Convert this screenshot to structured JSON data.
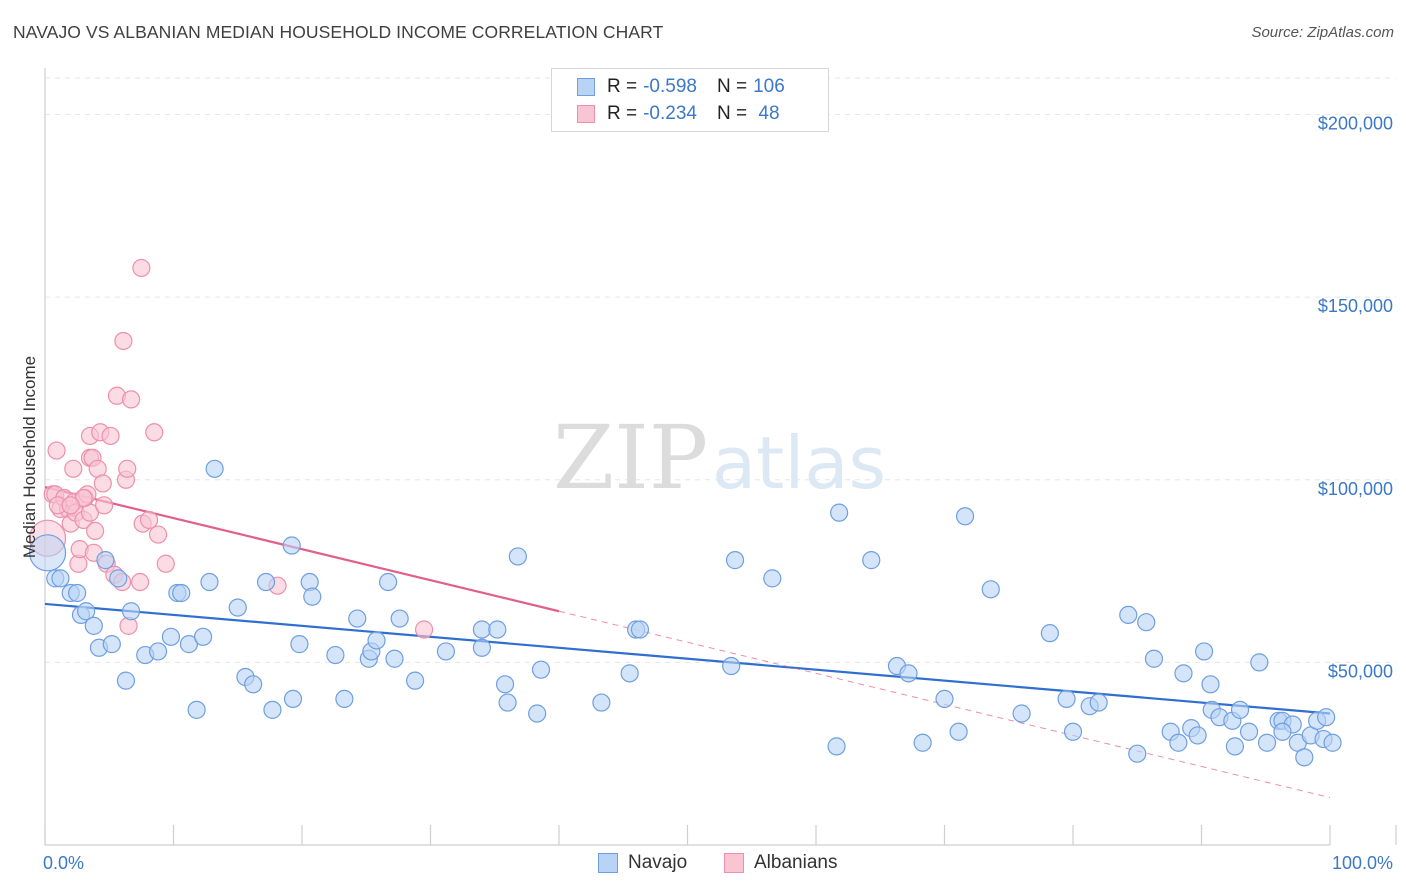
{
  "header": {
    "title": "NAVAJO VS ALBANIAN MEDIAN HOUSEHOLD INCOME CORRELATION CHART",
    "source": "Source: ZipAtlas.com"
  },
  "watermark": {
    "zip": "ZIP",
    "atlas": "atlas"
  },
  "legend_top": {
    "rows": [
      {
        "r_label": "R = ",
        "r_value": "-0.598",
        "n_label": "N = ",
        "n_value": "106",
        "color": "#b9d3f5",
        "stroke": "#6f9fe0"
      },
      {
        "r_label": "R = ",
        "r_value": "-0.234",
        "n_label": "N = ",
        "n_value": " 48",
        "color": "#f9c5d3",
        "stroke": "#ee8fac"
      }
    ]
  },
  "legend_bottom": [
    {
      "label": "Navajo",
      "color": "#b9d3f5",
      "stroke": "#6f9fe0"
    },
    {
      "label": "Albanians",
      "color": "#f9c5d3",
      "stroke": "#ee8fac"
    }
  ],
  "chart_data": {
    "type": "scatter",
    "title": "NAVAJO VS ALBANIAN MEDIAN HOUSEHOLD INCOME CORRELATION CHART",
    "xlabel": "",
    "ylabel": "Median Household Income",
    "xlim": [
      0,
      100
    ],
    "ylim": [
      0,
      210000
    ],
    "x_tick_labels": [
      "0.0%",
      "100.0%"
    ],
    "y_ticks": [
      50000,
      100000,
      150000,
      200000
    ],
    "y_tick_labels": [
      "$50,000",
      "$100,000",
      "$150,000",
      "$200,000"
    ],
    "grid": true,
    "legend_position": "top-center",
    "series": [
      {
        "name": "Navajo",
        "color": "#6f9fe0",
        "fill": "#b9d3f5",
        "trend": {
          "x": [
            0,
            100
          ],
          "y": [
            66000,
            36000
          ],
          "line_color": "#2f6fd0"
        },
        "points": [
          [
            0.2,
            80000
          ],
          [
            0.8,
            73000
          ],
          [
            1.2,
            73000
          ],
          [
            2.0,
            69000
          ],
          [
            2.5,
            69000
          ],
          [
            2.8,
            63000
          ],
          [
            3.2,
            64000
          ],
          [
            3.8,
            60000
          ],
          [
            4.2,
            54000
          ],
          [
            5.2,
            55000
          ],
          [
            4.7,
            78000
          ],
          [
            5.7,
            73000
          ],
          [
            6.3,
            45000
          ],
          [
            6.7,
            64000
          ],
          [
            7.8,
            52000
          ],
          [
            8.8,
            53000
          ],
          [
            9.8,
            57000
          ],
          [
            10.3,
            69000
          ],
          [
            11.2,
            55000
          ],
          [
            11.8,
            37000
          ],
          [
            12.3,
            57000
          ],
          [
            12.8,
            72000
          ],
          [
            10.6,
            69000
          ],
          [
            13.2,
            103000
          ],
          [
            15.0,
            65000
          ],
          [
            15.6,
            46000
          ],
          [
            16.2,
            44000
          ],
          [
            17.2,
            72000
          ],
          [
            17.7,
            37000
          ],
          [
            19.2,
            82000
          ],
          [
            19.3,
            40000
          ],
          [
            19.8,
            55000
          ],
          [
            20.6,
            72000
          ],
          [
            20.8,
            68000
          ],
          [
            22.6,
            52000
          ],
          [
            23.3,
            40000
          ],
          [
            24.3,
            62000
          ],
          [
            25.2,
            51000
          ],
          [
            25.4,
            53000
          ],
          [
            25.8,
            56000
          ],
          [
            26.7,
            72000
          ],
          [
            27.2,
            51000
          ],
          [
            27.6,
            62000
          ],
          [
            28.8,
            45000
          ],
          [
            31.2,
            53000
          ],
          [
            34.0,
            54000
          ],
          [
            34.0,
            59000
          ],
          [
            35.2,
            59000
          ],
          [
            35.8,
            44000
          ],
          [
            36.0,
            39000
          ],
          [
            36.8,
            79000
          ],
          [
            38.3,
            36000
          ],
          [
            38.6,
            48000
          ],
          [
            43.3,
            39000
          ],
          [
            46.0,
            59000
          ],
          [
            46.3,
            59000
          ],
          [
            45.5,
            47000
          ],
          [
            53.4,
            49000
          ],
          [
            53.7,
            78000
          ],
          [
            56.6,
            73000
          ],
          [
            61.6,
            27000
          ],
          [
            61.8,
            91000
          ],
          [
            64.3,
            78000
          ],
          [
            66.3,
            49000
          ],
          [
            67.2,
            47000
          ],
          [
            68.3,
            28000
          ],
          [
            70.0,
            40000
          ],
          [
            71.1,
            31000
          ],
          [
            71.6,
            90000
          ],
          [
            73.6,
            70000
          ],
          [
            76.0,
            36000
          ],
          [
            78.2,
            58000
          ],
          [
            79.5,
            40000
          ],
          [
            80.0,
            31000
          ],
          [
            81.3,
            38000
          ],
          [
            82.0,
            39000
          ],
          [
            84.3,
            63000
          ],
          [
            85.0,
            25000
          ],
          [
            85.7,
            61000
          ],
          [
            86.3,
            51000
          ],
          [
            87.6,
            31000
          ],
          [
            88.2,
            28000
          ],
          [
            88.6,
            47000
          ],
          [
            89.2,
            32000
          ],
          [
            89.7,
            30000
          ],
          [
            90.2,
            53000
          ],
          [
            90.7,
            44000
          ],
          [
            90.8,
            37000
          ],
          [
            91.4,
            35000
          ],
          [
            92.4,
            34000
          ],
          [
            92.6,
            27000
          ],
          [
            93.0,
            37000
          ],
          [
            93.7,
            31000
          ],
          [
            94.5,
            50000
          ],
          [
            95.1,
            28000
          ],
          [
            96.0,
            34000
          ],
          [
            96.3,
            34000
          ],
          [
            97.1,
            33000
          ],
          [
            96.3,
            31000
          ],
          [
            97.5,
            28000
          ],
          [
            98.0,
            24000
          ],
          [
            98.5,
            30000
          ],
          [
            99.0,
            34000
          ],
          [
            99.7,
            35000
          ],
          [
            99.5,
            29000
          ],
          [
            100.2,
            28000
          ]
        ]
      },
      {
        "name": "Albanians",
        "color": "#ee8fac",
        "fill": "#f9c5d3",
        "trend": {
          "x": [
            0,
            40
          ],
          "y": [
            98000,
            64000
          ],
          "line_color": "#e0608a"
        },
        "trend_extension": {
          "x": [
            40,
            100
          ],
          "y": [
            64000,
            13000
          ]
        },
        "points": [
          [
            0.2,
            84000
          ],
          [
            0.6,
            96000
          ],
          [
            0.8,
            96000
          ],
          [
            0.9,
            108000
          ],
          [
            1.2,
            92000
          ],
          [
            1.5,
            95000
          ],
          [
            1.8,
            92000
          ],
          [
            2.0,
            88000
          ],
          [
            2.2,
            103000
          ],
          [
            2.3,
            94000
          ],
          [
            2.4,
            91000
          ],
          [
            2.6,
            77000
          ],
          [
            2.7,
            81000
          ],
          [
            3.0,
            89000
          ],
          [
            3.1,
            95000
          ],
          [
            3.3,
            96000
          ],
          [
            3.5,
            91000
          ],
          [
            3.5,
            106000
          ],
          [
            3.5,
            112000
          ],
          [
            3.7,
            106000
          ],
          [
            3.8,
            80000
          ],
          [
            3.9,
            86000
          ],
          [
            4.1,
            103000
          ],
          [
            4.3,
            113000
          ],
          [
            4.5,
            99000
          ],
          [
            4.6,
            93000
          ],
          [
            4.8,
            77000
          ],
          [
            5.1,
            112000
          ],
          [
            5.4,
            74000
          ],
          [
            5.6,
            123000
          ],
          [
            6.0,
            72000
          ],
          [
            6.1,
            138000
          ],
          [
            6.3,
            100000
          ],
          [
            6.4,
            103000
          ],
          [
            6.5,
            60000
          ],
          [
            6.7,
            122000
          ],
          [
            7.4,
            72000
          ],
          [
            7.5,
            158000
          ],
          [
            7.6,
            88000
          ],
          [
            8.1,
            89000
          ],
          [
            8.5,
            113000
          ],
          [
            8.8,
            85000
          ],
          [
            9.4,
            77000
          ],
          [
            18.1,
            71000
          ],
          [
            29.5,
            59000
          ],
          [
            3.0,
            95000
          ],
          [
            1.0,
            93000
          ],
          [
            2.0,
            93000
          ]
        ]
      }
    ]
  }
}
